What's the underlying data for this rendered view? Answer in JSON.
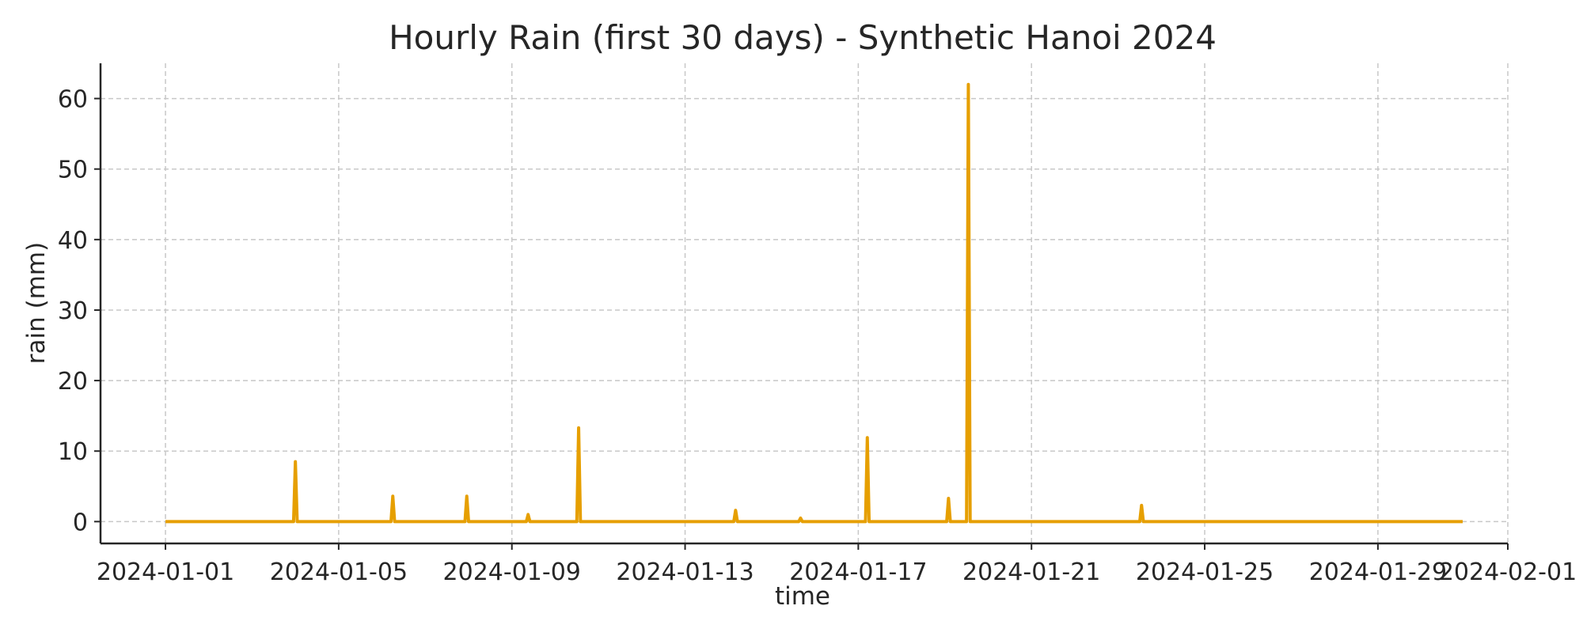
{
  "chart_data": {
    "type": "line",
    "title": "Hourly Rain (first 30 days) - Synthetic Hanoi 2024",
    "xlabel": "time",
    "ylabel": "rain (mm)",
    "x_ticks": [
      "2024-01-01",
      "2024-01-05",
      "2024-01-09",
      "2024-01-13",
      "2024-01-17",
      "2024-01-21",
      "2024-01-25",
      "2024-01-29",
      "2024-02-01"
    ],
    "y_ticks": [
      0,
      10,
      20,
      30,
      40,
      50,
      60
    ],
    "xlim": [
      "2023-12-30T12:00",
      "2024-02-01T00:00"
    ],
    "ylim": [
      -3.1,
      65
    ],
    "grid": true,
    "line_color": "#E69F00",
    "series": [
      {
        "name": "",
        "x": [
          "2024-01-01T00:00",
          "2024-01-03T23:00",
          "2024-01-04T00:00",
          "2024-01-04T01:00",
          "2024-01-06T05:00",
          "2024-01-06T06:00",
          "2024-01-06T07:00",
          "2024-01-07T22:00",
          "2024-01-07T23:00",
          "2024-01-08T00:00",
          "2024-01-09T08:00",
          "2024-01-09T09:00",
          "2024-01-09T10:00",
          "2024-01-10T12:00",
          "2024-01-10T13:00",
          "2024-01-10T14:00",
          "2024-01-14T03:00",
          "2024-01-14T04:00",
          "2024-01-14T05:00",
          "2024-01-15T15:00",
          "2024-01-15T16:00",
          "2024-01-15T17:00",
          "2024-01-17T04:00",
          "2024-01-17T05:00",
          "2024-01-17T06:00",
          "2024-01-19T01:00",
          "2024-01-19T02:00",
          "2024-01-19T03:00",
          "2024-01-19T12:00",
          "2024-01-19T13:00",
          "2024-01-19T14:00",
          "2024-01-23T12:00",
          "2024-01-23T13:00",
          "2024-01-23T14:00",
          "2024-01-30T23:00"
        ],
        "values": [
          0,
          0,
          8.5,
          0,
          0,
          3.6,
          0,
          0,
          3.6,
          0,
          0,
          1.0,
          0,
          0,
          13.3,
          0,
          0,
          1.6,
          0,
          0,
          0.5,
          0,
          0,
          11.9,
          0,
          0,
          3.3,
          0,
          0,
          62.0,
          0,
          0,
          2.3,
          0,
          0
        ]
      }
    ]
  }
}
